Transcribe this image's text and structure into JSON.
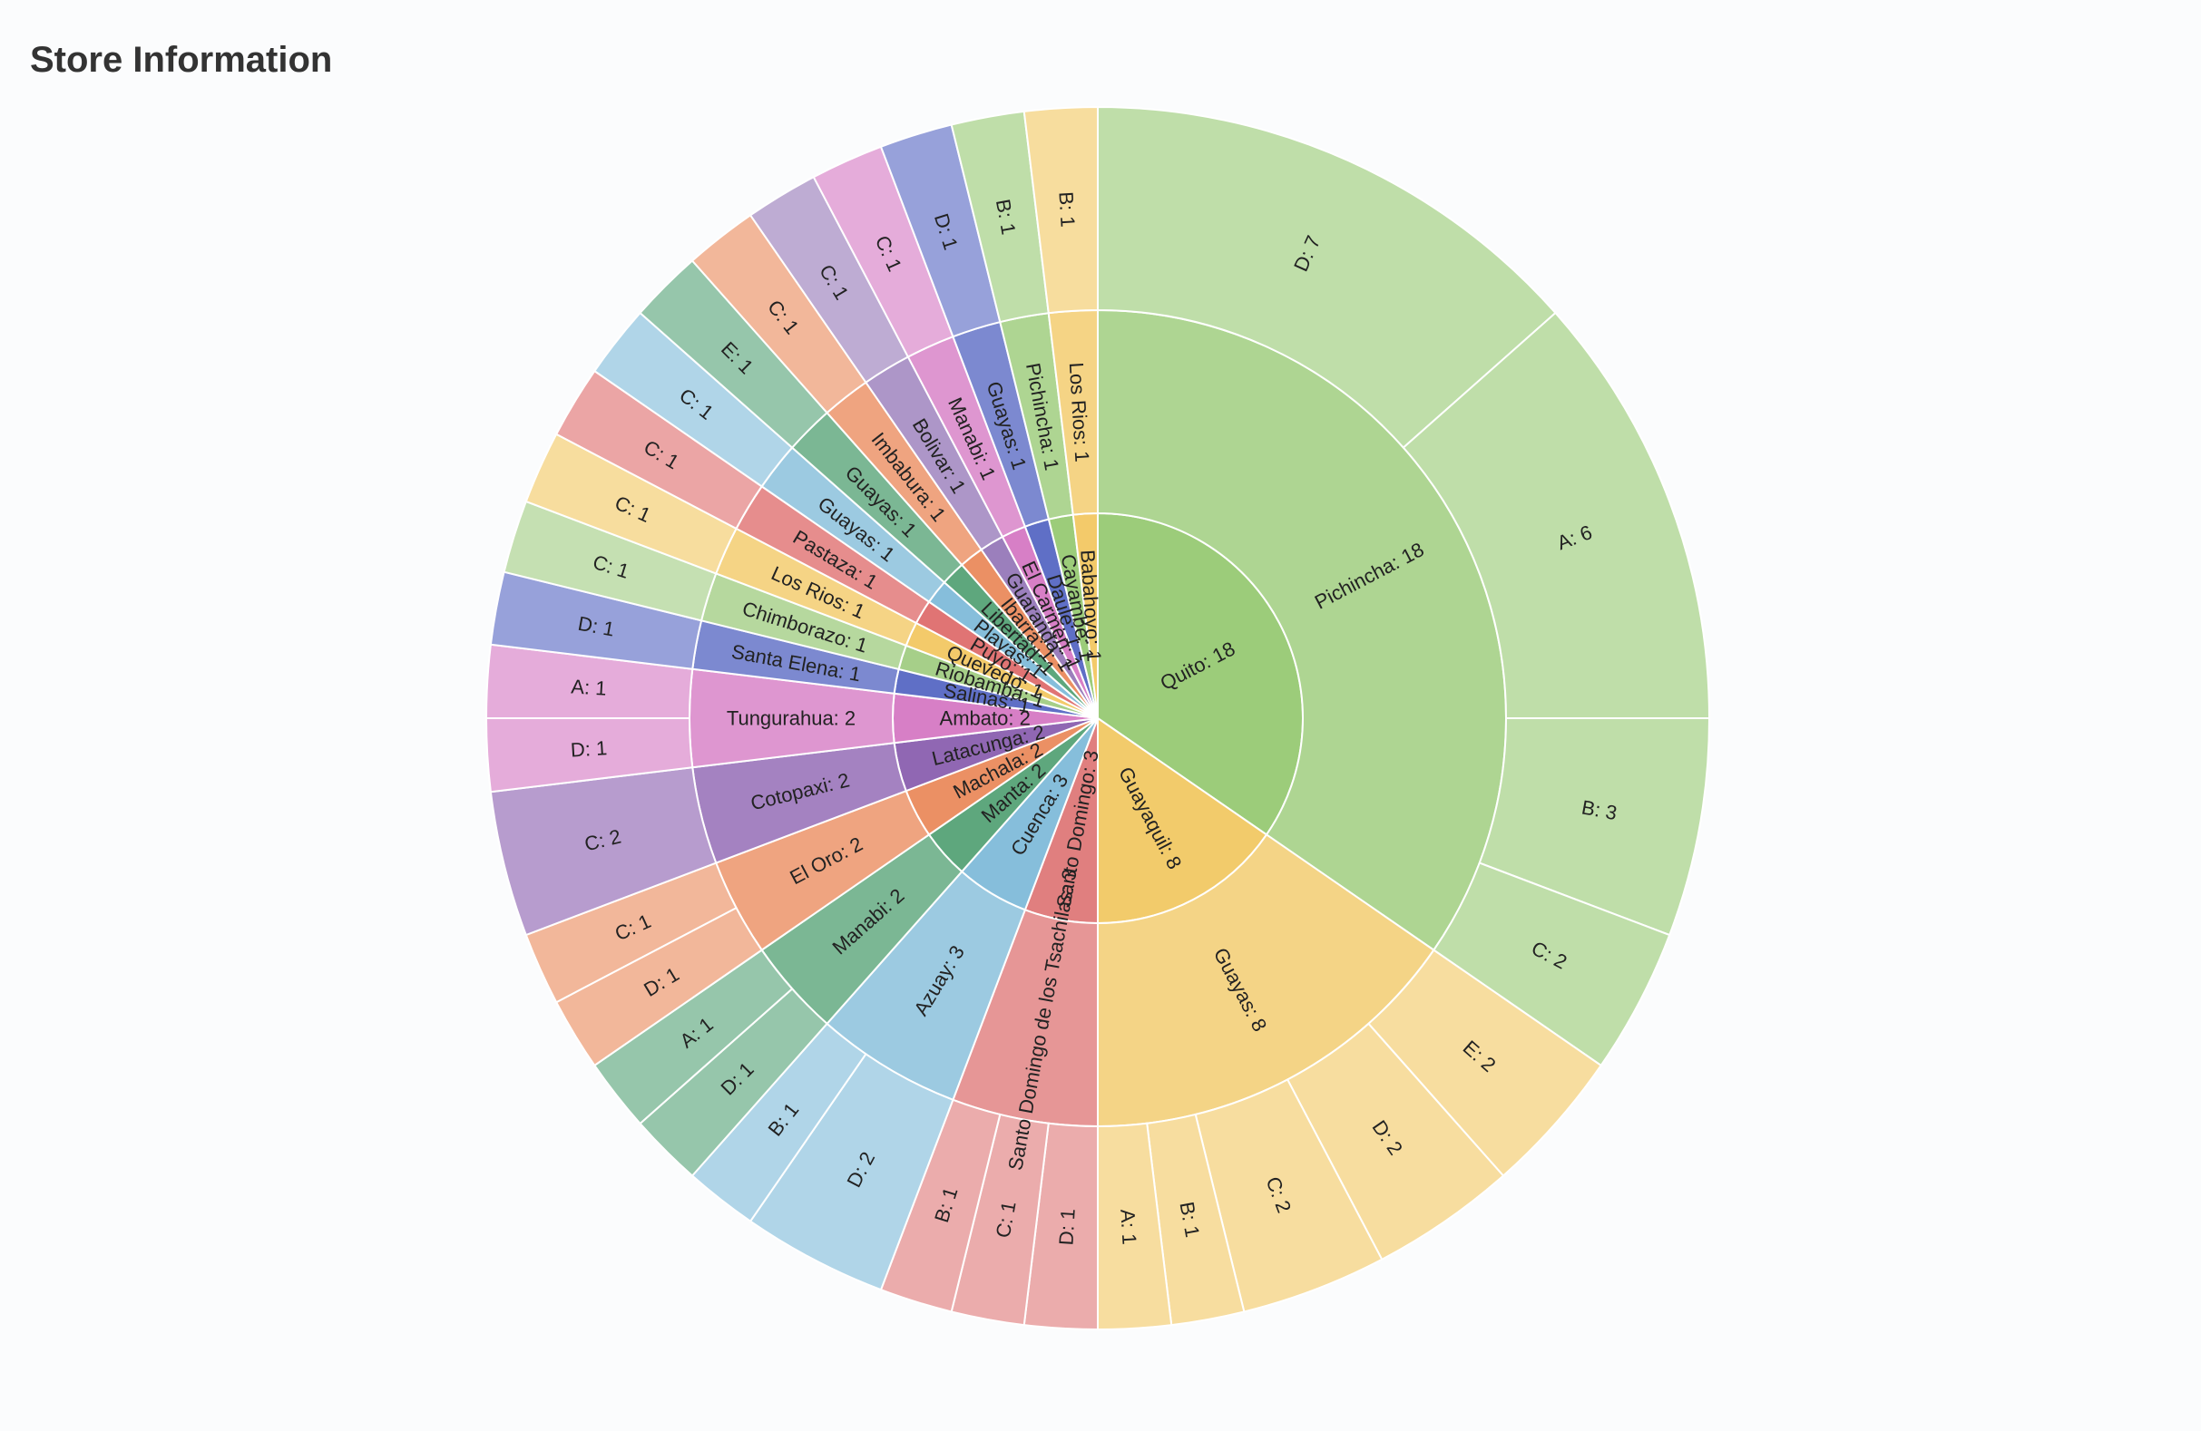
{
  "title": "Store Information",
  "chart_data": {
    "type": "sunburst",
    "title": "Store Information",
    "levels": [
      "city",
      "state",
      "type"
    ],
    "colors": {
      "Quito": "#9ccc7a",
      "Guayaquil": "#f2cb6b",
      "Santo Domingo": "#e07f7f",
      "Cuenca": "#86bedb",
      "Manta": "#5ea77d",
      "Machala": "#eb9064",
      "Latacunga": "#9067b3",
      "Ambato": "#d77fc6",
      "Salinas": "#5f6fc6",
      "Riobamba": "#a6cf89",
      "Quevedo": "#f3ca6a",
      "Puyo": "#e07474",
      "Playas": "#86bedb",
      "Libertad": "#5ea77d",
      "Ibarra": "#eb9064",
      "Guaranda": "#9b7fbc",
      "El Carmen": "#d77fc6",
      "Daule": "#5f6fc6",
      "Cayambe": "#9ccc7a",
      "Babahoyo": "#f3ca6a"
    },
    "series": [
      {
        "name": "Quito",
        "value": 18,
        "label": "Quito: 18",
        "children": [
          {
            "name": "Pichincha",
            "value": 18,
            "label": "Pichincha: 18",
            "children": [
              {
                "name": "D",
                "value": 7,
                "label": "D: 7"
              },
              {
                "name": "A",
                "value": 6,
                "label": "A: 6"
              },
              {
                "name": "B",
                "value": 3,
                "label": "B: 3"
              },
              {
                "name": "C",
                "value": 2,
                "label": "C: 2"
              }
            ]
          }
        ]
      },
      {
        "name": "Guayaquil",
        "value": 8,
        "label": "Guayaquil: 8",
        "children": [
          {
            "name": "Guayas",
            "value": 8,
            "label": "Guayas: 8",
            "children": [
              {
                "name": "E",
                "value": 2,
                "label": "E: 2"
              },
              {
                "name": "D",
                "value": 2,
                "label": "D: 2"
              },
              {
                "name": "C",
                "value": 2,
                "label": "C: 2"
              },
              {
                "name": "B",
                "value": 1,
                "label": "B: 1"
              },
              {
                "name": "A",
                "value": 1,
                "label": "A: 1"
              }
            ]
          }
        ]
      },
      {
        "name": "Santo Domingo",
        "value": 3,
        "label": "Santo Domingo: 3",
        "children": [
          {
            "name": "Santo Domingo de los Tsachilas",
            "value": 3,
            "label": "Santo Domingo de los Tsachilas: 3",
            "children": [
              {
                "name": "D",
                "value": 1,
                "label": "D: 1"
              },
              {
                "name": "C",
                "value": 1,
                "label": "C: 1"
              },
              {
                "name": "B",
                "value": 1,
                "label": "B: 1"
              }
            ]
          }
        ]
      },
      {
        "name": "Cuenca",
        "value": 3,
        "label": "Cuenca: 3",
        "children": [
          {
            "name": "Azuay",
            "value": 3,
            "label": "Azuay: 3",
            "children": [
              {
                "name": "D",
                "value": 2,
                "label": "D: 2"
              },
              {
                "name": "B",
                "value": 1,
                "label": "B: 1"
              }
            ]
          }
        ]
      },
      {
        "name": "Manta",
        "value": 2,
        "label": "Manta: 2",
        "children": [
          {
            "name": "Manabi",
            "value": 2,
            "label": "Manabi: 2",
            "children": [
              {
                "name": "D",
                "value": 1,
                "label": "D: 1"
              },
              {
                "name": "A",
                "value": 1,
                "label": "A: 1"
              }
            ]
          }
        ]
      },
      {
        "name": "Machala",
        "value": 2,
        "label": "Machala: 2",
        "children": [
          {
            "name": "El Oro",
            "value": 2,
            "label": "El Oro: 2",
            "children": [
              {
                "name": "D",
                "value": 1,
                "label": "D: 1"
              },
              {
                "name": "C",
                "value": 1,
                "label": "C: 1"
              }
            ]
          }
        ]
      },
      {
        "name": "Latacunga",
        "value": 2,
        "label": "Latacunga: 2",
        "children": [
          {
            "name": "Cotopaxi",
            "value": 2,
            "label": "Cotopaxi: 2",
            "children": [
              {
                "name": "C",
                "value": 2,
                "label": "C: 2"
              }
            ]
          }
        ]
      },
      {
        "name": "Ambato",
        "value": 2,
        "label": "Ambato: 2",
        "children": [
          {
            "name": "Tungurahua",
            "value": 2,
            "label": "Tungurahua: 2",
            "children": [
              {
                "name": "D",
                "value": 1,
                "label": "D: 1"
              },
              {
                "name": "A",
                "value": 1,
                "label": "A: 1"
              }
            ]
          }
        ]
      },
      {
        "name": "Salinas",
        "value": 1,
        "label": "Salinas: 1",
        "children": [
          {
            "name": "Santa Elena",
            "value": 1,
            "label": "Santa Elena: 1",
            "children": [
              {
                "name": "D",
                "value": 1,
                "label": "D: 1"
              }
            ]
          }
        ]
      },
      {
        "name": "Riobamba",
        "value": 1,
        "label": "Riobamba: 1",
        "children": [
          {
            "name": "Chimborazo",
            "value": 1,
            "label": "Chimborazo: 1",
            "children": [
              {
                "name": "C",
                "value": 1,
                "label": "C: 1"
              }
            ]
          }
        ]
      },
      {
        "name": "Quevedo",
        "value": 1,
        "label": "Quevedo: 1",
        "children": [
          {
            "name": "Los Rios",
            "value": 1,
            "label": "Los Rios: 1",
            "children": [
              {
                "name": "C",
                "value": 1,
                "label": "C: 1"
              }
            ]
          }
        ]
      },
      {
        "name": "Puyo",
        "value": 1,
        "label": "Puyo: 1",
        "children": [
          {
            "name": "Pastaza",
            "value": 1,
            "label": "Pastaza: 1",
            "children": [
              {
                "name": "C",
                "value": 1,
                "label": "C: 1"
              }
            ]
          }
        ]
      },
      {
        "name": "Playas",
        "value": 1,
        "label": "Playas: 1",
        "children": [
          {
            "name": "Guayas",
            "value": 1,
            "label": "Guayas: 1",
            "children": [
              {
                "name": "C",
                "value": 1,
                "label": "C: 1"
              }
            ]
          }
        ]
      },
      {
        "name": "Libertad",
        "value": 1,
        "label": "Libertad: 1",
        "children": [
          {
            "name": "Guayas",
            "value": 1,
            "label": "Guayas: 1",
            "children": [
              {
                "name": "E",
                "value": 1,
                "label": "E: 1"
              }
            ]
          }
        ]
      },
      {
        "name": "Ibarra",
        "value": 1,
        "label": "Ibarra: 1",
        "children": [
          {
            "name": "Imbabura",
            "value": 1,
            "label": "Imbabura: 1",
            "children": [
              {
                "name": "C",
                "value": 1,
                "label": "C: 1"
              }
            ]
          }
        ]
      },
      {
        "name": "Guaranda",
        "value": 1,
        "label": "Guaranda: 1",
        "children": [
          {
            "name": "Bolivar",
            "value": 1,
            "label": "Bolivar: 1",
            "children": [
              {
                "name": "C",
                "value": 1,
                "label": "C: 1"
              }
            ]
          }
        ]
      },
      {
        "name": "El Carmen",
        "value": 1,
        "label": "El Carmen: 1",
        "children": [
          {
            "name": "Manabi",
            "value": 1,
            "label": "Manabi: 1",
            "children": [
              {
                "name": "C",
                "value": 1,
                "label": "C: 1"
              }
            ]
          }
        ]
      },
      {
        "name": "Daule",
        "value": 1,
        "label": "Daule: 1",
        "children": [
          {
            "name": "Guayas",
            "value": 1,
            "label": "Guayas: 1",
            "children": [
              {
                "name": "D",
                "value": 1,
                "label": "D: 1"
              }
            ]
          }
        ]
      },
      {
        "name": "Cayambe",
        "value": 1,
        "label": "Cayambe: 1",
        "children": [
          {
            "name": "Pichincha",
            "value": 1,
            "label": "Pichincha: 1",
            "children": [
              {
                "name": "B",
                "value": 1,
                "label": "B: 1"
              }
            ]
          }
        ]
      },
      {
        "name": "Babahoyo",
        "value": 1,
        "label": "Babahoyo: 1",
        "children": [
          {
            "name": "Los Rios",
            "value": 1,
            "label": "Los Rios: 1",
            "children": [
              {
                "name": "B",
                "value": 1,
                "label": "B: 1"
              }
            ]
          }
        ]
      }
    ]
  }
}
